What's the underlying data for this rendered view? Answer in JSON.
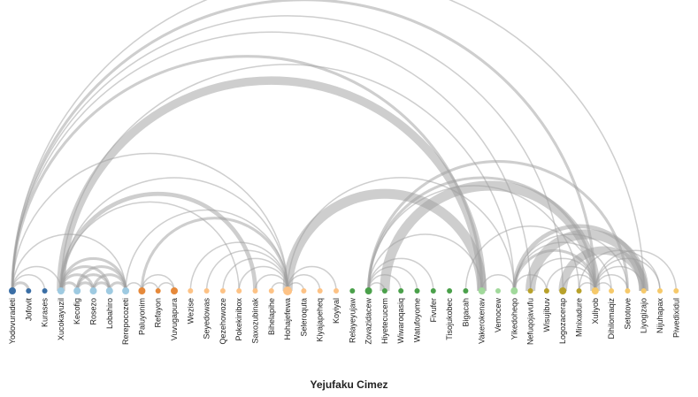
{
  "title": "Yejufaku Cimez",
  "groups": {
    "g1": "#3a6ea5",
    "g2": "#9ecae1",
    "g3": "#e6893a",
    "g4": "#fdc285",
    "g5": "#4aa04a",
    "g6": "#a1d99b",
    "g7": "#b8a12a",
    "g8": "#f6c96a"
  },
  "nodes": [
    {
      "name": "Yodovuradeti",
      "group": "g1",
      "size": 3
    },
    {
      "name": "Jofovit",
      "group": "g1",
      "size": 2
    },
    {
      "name": "Kurases",
      "group": "g1",
      "size": 2
    },
    {
      "name": "Xucokayuzil",
      "group": "g2",
      "size": 3
    },
    {
      "name": "Kecofig",
      "group": "g2",
      "size": 3
    },
    {
      "name": "Rosezo",
      "group": "g2",
      "size": 3
    },
    {
      "name": "Lobahiro",
      "group": "g2",
      "size": 3
    },
    {
      "name": "Rerepocozeti",
      "group": "g2",
      "size": 3
    },
    {
      "name": "Paluyonim",
      "group": "g3",
      "size": 3
    },
    {
      "name": "Refayon",
      "group": "g3",
      "size": 2
    },
    {
      "name": "Vuvugapura",
      "group": "g3",
      "size": 3
    },
    {
      "name": "Wezise",
      "group": "g4",
      "size": 2
    },
    {
      "name": "Seyedowas",
      "group": "g4",
      "size": 2
    },
    {
      "name": "Qezehowoze",
      "group": "g4",
      "size": 2
    },
    {
      "name": "Pokekinibox",
      "group": "g4",
      "size": 2
    },
    {
      "name": "Saxozubinak",
      "group": "g4",
      "size": 2
    },
    {
      "name": "Bihelapihe",
      "group": "g4",
      "size": 2
    },
    {
      "name": "Hohajefewa",
      "group": "g4",
      "size": 4
    },
    {
      "name": "Seleroquta",
      "group": "g4",
      "size": 2
    },
    {
      "name": "Kiyajapeheq",
      "group": "g4",
      "size": 2
    },
    {
      "name": "Koyiyal",
      "group": "g4",
      "size": 2
    },
    {
      "name": "Relayeyujaw",
      "group": "g5",
      "size": 2
    },
    {
      "name": "Zovazidacew",
      "group": "g5",
      "size": 3
    },
    {
      "name": "Hiyetecucem",
      "group": "g5",
      "size": 2
    },
    {
      "name": "Wiwaroqasiq",
      "group": "g5",
      "size": 2
    },
    {
      "name": "Watufoyome",
      "group": "g5",
      "size": 2
    },
    {
      "name": "Fivufer",
      "group": "g5",
      "size": 2
    },
    {
      "name": "Tisojukobec",
      "group": "g5",
      "size": 2
    },
    {
      "name": "Bigacah",
      "group": "g5",
      "size": 2
    },
    {
      "name": "Vakerokenav",
      "group": "g6",
      "size": 3
    },
    {
      "name": "Vemocew",
      "group": "g6",
      "size": 2
    },
    {
      "name": "Yikedoheqo",
      "group": "g6",
      "size": 3
    },
    {
      "name": "Nefuqojavufu",
      "group": "g7",
      "size": 2
    },
    {
      "name": "Wisujibuv",
      "group": "g7",
      "size": 2
    },
    {
      "name": "Logozacerap",
      "group": "g7",
      "size": 3
    },
    {
      "name": "Minixadure",
      "group": "g7",
      "size": 2
    },
    {
      "name": "Xuliyob",
      "group": "g8",
      "size": 3
    },
    {
      "name": "Dihilomaqiz",
      "group": "g8",
      "size": 2
    },
    {
      "name": "Setotove",
      "group": "g8",
      "size": 2
    },
    {
      "name": "Liyogizajo",
      "group": "g8",
      "size": 2
    },
    {
      "name": "Nijuhapax",
      "group": "g8",
      "size": 2
    },
    {
      "name": "Piwedixidul",
      "group": "g8",
      "size": 2
    }
  ],
  "links": [
    [
      0,
      1,
      2
    ],
    [
      0,
      2,
      1
    ],
    [
      0,
      3,
      1
    ],
    [
      0,
      7,
      1
    ],
    [
      0,
      17,
      1
    ],
    [
      0,
      29,
      2
    ],
    [
      0,
      32,
      1
    ],
    [
      0,
      34,
      1
    ],
    [
      0,
      36,
      2
    ],
    [
      0,
      39,
      1
    ],
    [
      3,
      4,
      2
    ],
    [
      3,
      5,
      2
    ],
    [
      3,
      6,
      2
    ],
    [
      3,
      7,
      2
    ],
    [
      4,
      5,
      2
    ],
    [
      4,
      6,
      2
    ],
    [
      4,
      7,
      2
    ],
    [
      5,
      6,
      2
    ],
    [
      5,
      7,
      2
    ],
    [
      6,
      7,
      2
    ],
    [
      3,
      14,
      1
    ],
    [
      3,
      15,
      3
    ],
    [
      3,
      17,
      1
    ],
    [
      3,
      29,
      6
    ],
    [
      3,
      31,
      1
    ],
    [
      7,
      17,
      1
    ],
    [
      7,
      8,
      1
    ],
    [
      8,
      9,
      1
    ],
    [
      8,
      10,
      1
    ],
    [
      9,
      10,
      1
    ],
    [
      8,
      17,
      2
    ],
    [
      11,
      17,
      1
    ],
    [
      12,
      17,
      1
    ],
    [
      13,
      17,
      1
    ],
    [
      14,
      17,
      1
    ],
    [
      15,
      17,
      1
    ],
    [
      16,
      17,
      1
    ],
    [
      17,
      18,
      1
    ],
    [
      17,
      19,
      1
    ],
    [
      17,
      20,
      1
    ],
    [
      17,
      29,
      7
    ],
    [
      17,
      31,
      1
    ],
    [
      22,
      38,
      2
    ],
    [
      22,
      36,
      2
    ],
    [
      22,
      35,
      1
    ],
    [
      23,
      36,
      7
    ],
    [
      22,
      23,
      1
    ],
    [
      22,
      24,
      1
    ],
    [
      22,
      25,
      1
    ],
    [
      22,
      26,
      1
    ],
    [
      22,
      29,
      1
    ],
    [
      28,
      36,
      1
    ],
    [
      29,
      31,
      1
    ],
    [
      31,
      33,
      1
    ],
    [
      31,
      36,
      2
    ],
    [
      31,
      37,
      1
    ],
    [
      31,
      38,
      1
    ],
    [
      32,
      36,
      1
    ],
    [
      33,
      36,
      1
    ],
    [
      34,
      36,
      1
    ],
    [
      31,
      39,
      3
    ],
    [
      32,
      39,
      7
    ],
    [
      34,
      39,
      6
    ],
    [
      35,
      36,
      1
    ],
    [
      36,
      37,
      1
    ],
    [
      36,
      38,
      1
    ],
    [
      36,
      39,
      1
    ],
    [
      36,
      40,
      1
    ],
    [
      36,
      41,
      1
    ],
    [
      35,
      40,
      1
    ]
  ]
}
